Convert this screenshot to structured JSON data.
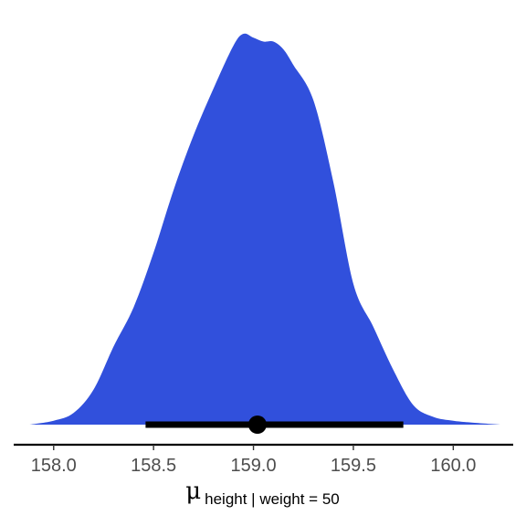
{
  "chart_data": {
    "type": "area",
    "title": "",
    "xlabel": {
      "symbol": "μ",
      "subscript": "height | weight = 50"
    },
    "ylabel": "",
    "xlim": [
      157.8,
      160.3
    ],
    "xticks": [
      158.0,
      158.5,
      159.0,
      159.5,
      160.0
    ],
    "xtick_labels": [
      "158.0",
      "158.5",
      "159.0",
      "159.5",
      "160.0"
    ],
    "y_axis_shown": false,
    "grid": false,
    "legend": "none",
    "density": {
      "x": [
        157.88,
        158.0,
        158.1,
        158.2,
        158.3,
        158.4,
        158.5,
        158.6,
        158.7,
        158.8,
        158.9,
        158.95,
        159.0,
        159.05,
        159.1,
        159.15,
        159.2,
        159.3,
        159.4,
        159.5,
        159.6,
        159.7,
        159.8,
        159.9,
        160.0,
        160.1,
        160.24
      ],
      "y": [
        0.0,
        0.01,
        0.03,
        0.09,
        0.2,
        0.3,
        0.44,
        0.6,
        0.74,
        0.86,
        0.97,
        1.0,
        0.99,
        0.98,
        0.98,
        0.96,
        0.92,
        0.83,
        0.62,
        0.36,
        0.25,
        0.14,
        0.05,
        0.02,
        0.01,
        0.005,
        0.0
      ],
      "fill_color": "#3150DC"
    },
    "point_interval": {
      "point": 159.02,
      "lower": 158.46,
      "upper": 159.75,
      "color": "#000000"
    }
  }
}
